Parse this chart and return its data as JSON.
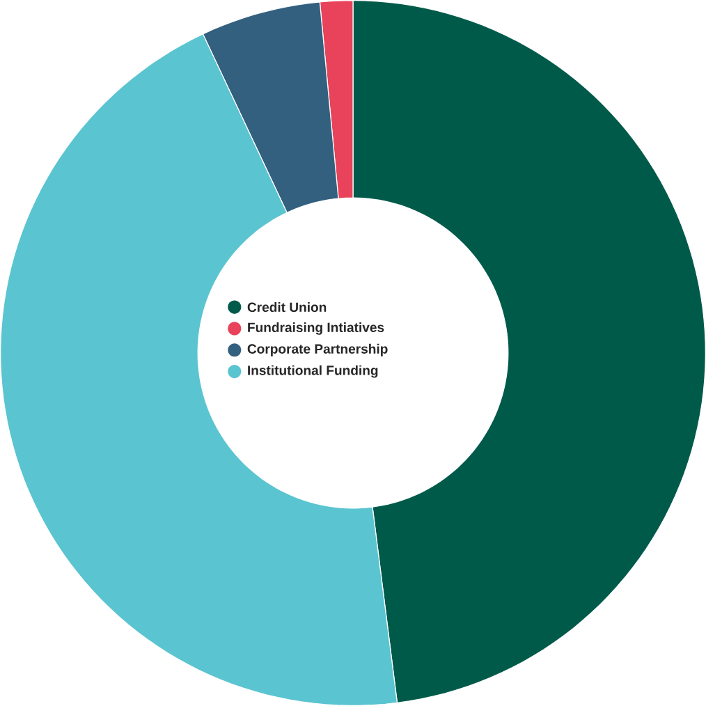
{
  "chart_data": {
    "type": "donut",
    "categories": [
      "Credit Union",
      "Fundraising Intiatives",
      "Corporate Partnership",
      "Institutional Funding"
    ],
    "values": [
      48,
      1.5,
      5.5,
      45
    ],
    "colors": [
      "#005a4a",
      "#e8435a",
      "#33607f",
      "#5bc4d1"
    ],
    "legend": "center"
  }
}
